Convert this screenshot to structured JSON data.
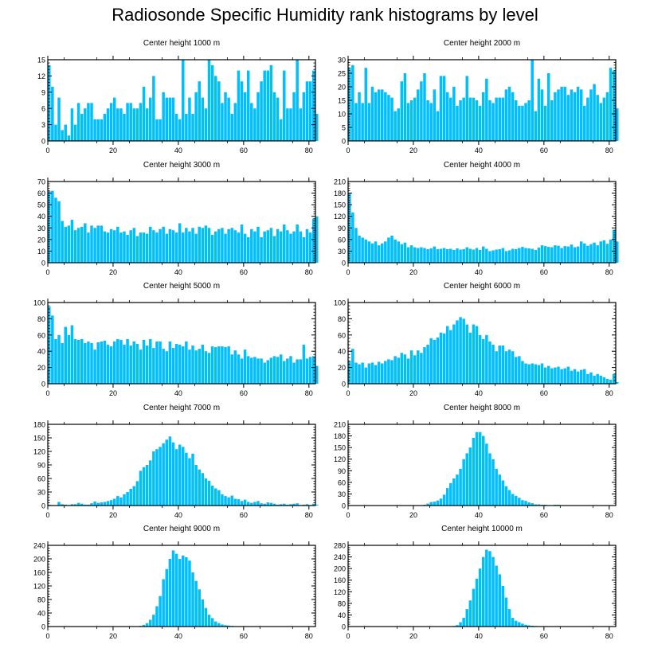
{
  "title": "Radiosonde Specific Humidity rank histograms by level",
  "colors": {
    "bar": "#00bfff",
    "axis": "#000000",
    "text": "#000000"
  },
  "chart_data": [
    {
      "type": "bar",
      "title": "Center height 1000 m",
      "xlim": [
        0,
        82
      ],
      "ylim": [
        0,
        15
      ],
      "xticks": [
        0,
        20,
        40,
        60,
        80
      ],
      "yticks": [
        0,
        3,
        6,
        9,
        12,
        15
      ],
      "values": [
        14,
        10,
        3,
        8,
        2,
        3,
        1,
        6,
        3,
        7,
        5,
        6,
        7,
        7,
        4,
        4,
        4,
        5,
        6,
        7,
        8,
        6,
        6,
        5,
        7,
        7,
        6,
        6,
        7,
        10,
        6,
        8,
        12,
        4,
        4,
        9,
        8,
        8,
        8,
        5,
        4,
        15,
        5,
        8,
        5,
        9,
        11,
        8,
        6,
        15,
        14,
        12,
        11,
        7,
        9,
        8,
        5,
        7,
        13,
        11,
        9,
        13,
        7,
        6,
        9,
        11,
        13,
        13,
        14,
        9,
        8,
        4,
        13,
        6,
        6,
        9,
        15,
        6,
        9,
        11,
        11,
        13,
        5
      ]
    },
    {
      "type": "bar",
      "title": "Center height 2000 m",
      "xlim": [
        0,
        82
      ],
      "ylim": [
        0,
        30
      ],
      "xticks": [
        0,
        20,
        40,
        60,
        80
      ],
      "yticks": [
        0,
        5,
        10,
        15,
        20,
        25,
        30
      ],
      "values": [
        27,
        28,
        14,
        18,
        14,
        27,
        14,
        20,
        18,
        19,
        19,
        18,
        17,
        16,
        11,
        12,
        22,
        25,
        14,
        15,
        16,
        19,
        22,
        25,
        15,
        14,
        19,
        11,
        24,
        24,
        18,
        16,
        20,
        13,
        15,
        16,
        24,
        16,
        16,
        15,
        13,
        18,
        23,
        15,
        14,
        16,
        16,
        16,
        19,
        20,
        18,
        15,
        13,
        13,
        14,
        15,
        30,
        11,
        23,
        19,
        13,
        25,
        15,
        18,
        19,
        20,
        20,
        17,
        19,
        18,
        20,
        19,
        13,
        16,
        19,
        21,
        17,
        14,
        16,
        18,
        27,
        26,
        12
      ]
    },
    {
      "type": "bar",
      "title": "Center height 3000 m",
      "xlim": [
        0,
        82
      ],
      "ylim": [
        0,
        70
      ],
      "xticks": [
        0,
        20,
        40,
        60,
        80
      ],
      "yticks": [
        0,
        10,
        20,
        30,
        40,
        50,
        60,
        70
      ],
      "values": [
        62,
        62,
        56,
        53,
        36,
        31,
        32,
        37,
        28,
        30,
        31,
        34,
        26,
        32,
        30,
        32,
        32,
        27,
        26,
        29,
        28,
        31,
        26,
        27,
        24,
        28,
        30,
        23,
        26,
        26,
        25,
        31,
        28,
        26,
        29,
        31,
        25,
        29,
        28,
        26,
        34,
        26,
        30,
        27,
        30,
        25,
        31,
        30,
        32,
        30,
        24,
        27,
        29,
        30,
        25,
        29,
        30,
        28,
        26,
        33,
        25,
        22,
        29,
        27,
        31,
        22,
        27,
        28,
        30,
        23,
        29,
        27,
        33,
        28,
        25,
        27,
        33,
        27,
        22,
        29,
        26,
        38,
        40
      ]
    },
    {
      "type": "bar",
      "title": "Center height 4000 m",
      "xlim": [
        0,
        82
      ],
      "ylim": [
        0,
        210
      ],
      "xticks": [
        0,
        20,
        40,
        60,
        80
      ],
      "yticks": [
        0,
        30,
        60,
        90,
        120,
        150,
        180,
        210
      ],
      "values": [
        180,
        130,
        90,
        70,
        65,
        60,
        55,
        50,
        55,
        45,
        50,
        55,
        65,
        70,
        60,
        55,
        48,
        52,
        40,
        45,
        40,
        38,
        40,
        38,
        35,
        37,
        42,
        35,
        36,
        38,
        35,
        36,
        33,
        37,
        34,
        35,
        40,
        36,
        34,
        38,
        33,
        42,
        36,
        30,
        32,
        34,
        35,
        38,
        30,
        32,
        36,
        35,
        38,
        41,
        38,
        37,
        36,
        33,
        39,
        45,
        43,
        41,
        40,
        45,
        44,
        38,
        43,
        42,
        47,
        40,
        42,
        55,
        50,
        44,
        48,
        52,
        45,
        55,
        58,
        49,
        60,
        85,
        55
      ]
    },
    {
      "type": "bar",
      "title": "Center height 5000 m",
      "xlim": [
        0,
        82
      ],
      "ylim": [
        0,
        100
      ],
      "xticks": [
        0,
        20,
        40,
        60,
        80
      ],
      "yticks": [
        0,
        20,
        40,
        60,
        80,
        100
      ],
      "values": [
        95,
        84,
        55,
        60,
        50,
        70,
        60,
        72,
        55,
        54,
        55,
        50,
        52,
        50,
        42,
        51,
        52,
        53,
        48,
        46,
        52,
        55,
        54,
        48,
        55,
        47,
        52,
        49,
        42,
        54,
        47,
        55,
        44,
        52,
        52,
        43,
        40,
        52,
        44,
        49,
        48,
        46,
        52,
        42,
        47,
        41,
        43,
        48,
        40,
        38,
        46,
        45,
        46,
        46,
        45,
        46,
        36,
        41,
        36,
        31,
        42,
        34,
        32,
        33,
        31,
        31,
        26,
        29,
        32,
        34,
        33,
        36,
        28,
        31,
        34,
        26,
        30,
        30,
        48,
        31,
        33,
        34,
        22
      ]
    },
    {
      "type": "bar",
      "title": "Center height 6000 m",
      "xlim": [
        0,
        82
      ],
      "ylim": [
        0,
        100
      ],
      "xticks": [
        0,
        20,
        40,
        60,
        80
      ],
      "yticks": [
        0,
        20,
        40,
        60,
        80,
        100
      ],
      "values": [
        28,
        43,
        26,
        24,
        26,
        20,
        25,
        26,
        23,
        27,
        25,
        28,
        30,
        29,
        34,
        32,
        38,
        36,
        31,
        41,
        35,
        41,
        38,
        45,
        48,
        56,
        54,
        57,
        63,
        62,
        71,
        66,
        73,
        78,
        82,
        80,
        73,
        63,
        73,
        71,
        60,
        55,
        60,
        52,
        48,
        40,
        47,
        47,
        40,
        42,
        40,
        33,
        34,
        28,
        25,
        24,
        25,
        24,
        23,
        25,
        20,
        22,
        19,
        20,
        21,
        18,
        19,
        21,
        16,
        18,
        15,
        17,
        18,
        12,
        14,
        10,
        12,
        10,
        8,
        6,
        5,
        12,
        2
      ]
    },
    {
      "type": "bar",
      "title": "Center height 7000 m",
      "xlim": [
        0,
        82
      ],
      "ylim": [
        0,
        180
      ],
      "xticks": [
        0,
        20,
        40,
        60,
        80
      ],
      "yticks": [
        0,
        30,
        60,
        90,
        120,
        150,
        180
      ],
      "values": [
        2,
        1,
        0,
        8,
        3,
        2,
        1,
        3,
        3,
        6,
        4,
        2,
        2,
        5,
        9,
        6,
        7,
        8,
        10,
        12,
        15,
        21,
        18,
        25,
        30,
        37,
        43,
        54,
        77,
        85,
        90,
        100,
        120,
        125,
        130,
        138,
        146,
        153,
        140,
        125,
        135,
        130,
        117,
        105,
        115,
        90,
        80,
        72,
        60,
        55,
        44,
        38,
        34,
        25,
        21,
        18,
        22,
        15,
        14,
        10,
        13,
        8,
        6,
        8,
        10,
        5,
        4,
        7,
        6,
        4,
        2,
        3,
        4,
        2,
        3,
        4,
        5,
        1,
        2,
        3,
        1,
        4,
        2
      ]
    },
    {
      "type": "bar",
      "title": "Center height 8000 m",
      "xlim": [
        0,
        82
      ],
      "ylim": [
        0,
        210
      ],
      "xticks": [
        0,
        20,
        40,
        60,
        80
      ],
      "yticks": [
        0,
        30,
        60,
        90,
        120,
        150,
        180,
        210
      ],
      "values": [
        0,
        0,
        0,
        0,
        0,
        0,
        0,
        0,
        0,
        0,
        0,
        0,
        0,
        0,
        0,
        1,
        0,
        0,
        0,
        0,
        1,
        1,
        1,
        2,
        5,
        9,
        10,
        13,
        18,
        28,
        45,
        58,
        70,
        80,
        95,
        120,
        135,
        150,
        175,
        190,
        190,
        180,
        160,
        135,
        120,
        95,
        80,
        65,
        50,
        40,
        30,
        25,
        20,
        14,
        12,
        8,
        6,
        3,
        3,
        2,
        2,
        1,
        1,
        2,
        2,
        1,
        0,
        0,
        0,
        0,
        0,
        0,
        1,
        0,
        0,
        0,
        0,
        0,
        0,
        0,
        0,
        0,
        0
      ]
    },
    {
      "type": "bar",
      "title": "Center height 9000 m",
      "xlim": [
        0,
        82
      ],
      "ylim": [
        0,
        240
      ],
      "xticks": [
        0,
        20,
        40,
        60,
        80
      ],
      "yticks": [
        0,
        40,
        80,
        120,
        160,
        200,
        240
      ],
      "values": [
        0,
        0,
        0,
        0,
        0,
        0,
        0,
        0,
        0,
        0,
        0,
        0,
        0,
        0,
        0,
        0,
        0,
        0,
        0,
        0,
        0,
        0,
        0,
        0,
        0,
        0,
        0,
        0,
        2,
        5,
        10,
        20,
        35,
        60,
        90,
        140,
        170,
        200,
        225,
        215,
        200,
        210,
        205,
        195,
        160,
        135,
        110,
        80,
        55,
        35,
        25,
        15,
        10,
        6,
        4,
        3,
        2,
        1,
        1,
        1,
        0,
        0,
        0,
        0,
        0,
        0,
        0,
        0,
        0,
        0,
        0,
        0,
        0,
        0,
        0,
        0,
        0,
        0,
        0,
        0,
        0,
        0,
        0
      ]
    },
    {
      "type": "bar",
      "title": "Center height 10000 m",
      "xlim": [
        0,
        82
      ],
      "ylim": [
        0,
        280
      ],
      "xticks": [
        0,
        20,
        40,
        60,
        80
      ],
      "yticks": [
        0,
        40,
        80,
        120,
        160,
        200,
        240,
        280
      ],
      "values": [
        0,
        0,
        0,
        0,
        0,
        0,
        0,
        0,
        0,
        0,
        0,
        0,
        0,
        0,
        0,
        0,
        0,
        0,
        0,
        0,
        0,
        0,
        0,
        0,
        0,
        0,
        0,
        0,
        0,
        0,
        0,
        0,
        2,
        5,
        15,
        30,
        60,
        90,
        130,
        165,
        200,
        240,
        265,
        260,
        240,
        210,
        180,
        140,
        100,
        60,
        30,
        20,
        15,
        10,
        6,
        4,
        3,
        2,
        1,
        1,
        1,
        0,
        0,
        0,
        0,
        0,
        0,
        0,
        0,
        0,
        0,
        0,
        0,
        0,
        0,
        0,
        0,
        0,
        0,
        0,
        0,
        0,
        0
      ]
    }
  ]
}
